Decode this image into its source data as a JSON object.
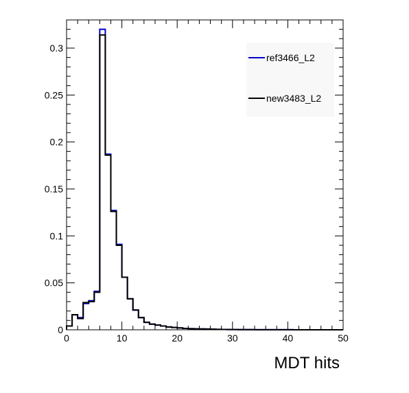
{
  "chart_data": {
    "type": "step-histogram",
    "xlabel": "MDT hits",
    "ylabel": "",
    "xlim": [
      0,
      50
    ],
    "ylim": [
      0,
      0.33
    ],
    "x_ticks": [
      0,
      10,
      20,
      30,
      40,
      50
    ],
    "y_ticks": [
      0,
      0.05,
      0.1,
      0.15,
      0.2,
      0.25,
      0.3
    ],
    "x_tick_labels": [
      "0",
      "10",
      "20",
      "30",
      "40",
      "50"
    ],
    "y_tick_labels": [
      "0",
      "0.05",
      "0.1",
      "0.15",
      "0.2",
      "0.25",
      "0.3"
    ],
    "grid": false,
    "legend_placement": "top-right",
    "bin_edges": [
      0,
      1,
      2,
      3,
      4,
      5,
      6,
      7,
      8,
      9,
      10,
      11,
      12,
      13,
      14,
      15,
      16,
      17,
      18,
      19,
      20,
      21,
      22,
      23,
      24,
      25,
      26,
      27,
      28,
      29,
      30,
      31,
      32,
      33,
      34,
      35,
      36,
      37,
      38,
      39,
      40,
      41,
      42,
      43,
      44,
      45,
      46,
      47,
      48,
      49,
      50
    ],
    "series": [
      {
        "name": "ref3466_L2",
        "color": "#0000cc",
        "values": [
          0.004,
          0.016,
          0.013,
          0.028,
          0.031,
          0.041,
          0.32,
          0.187,
          0.127,
          0.091,
          0.056,
          0.033,
          0.021,
          0.013,
          0.008,
          0.006,
          0.005,
          0.004,
          0.003,
          0.0025,
          0.002,
          0.0015,
          0.0012,
          0.001,
          0.0009,
          0.0008,
          0.0006,
          0.0005,
          0.0004,
          0.0003,
          0.0003,
          0.0002,
          0.0002,
          0.0002,
          0.0001,
          0.0001,
          0.0001,
          0.0001,
          0.0001,
          0.0001,
          0.0001,
          0,
          0,
          0,
          0,
          0,
          0,
          0,
          0,
          0
        ]
      },
      {
        "name": "new3483_L2",
        "color": "#000000",
        "values": [
          0.004,
          0.016,
          0.012,
          0.029,
          0.03,
          0.04,
          0.314,
          0.186,
          0.126,
          0.09,
          0.056,
          0.033,
          0.021,
          0.013,
          0.008,
          0.006,
          0.005,
          0.004,
          0.003,
          0.0025,
          0.002,
          0.0015,
          0.0012,
          0.001,
          0.0009,
          0.0008,
          0.0006,
          0.0005,
          0.0004,
          0.0003,
          0.0003,
          0.0002,
          0.0002,
          0.0002,
          0.0001,
          0.0001,
          0.0001,
          0.0001,
          0.0001,
          0.0001,
          0.0001,
          0,
          0,
          0,
          0,
          0,
          0,
          0,
          0,
          0
        ]
      }
    ]
  }
}
